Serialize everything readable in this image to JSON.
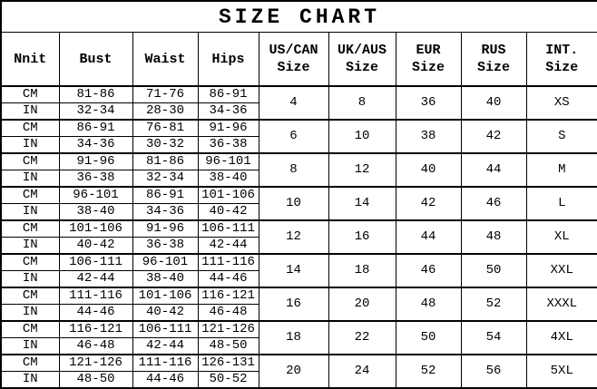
{
  "title": "SIZE CHART",
  "colors": {
    "background": "#ffffff",
    "border": "#000000",
    "text": "#000000"
  },
  "table": {
    "headers": [
      {
        "line1": "Nnit",
        "line2": ""
      },
      {
        "line1": "Bust",
        "line2": ""
      },
      {
        "line1": "Waist",
        "line2": ""
      },
      {
        "line1": "Hips",
        "line2": ""
      },
      {
        "line1": "US/CAN",
        "line2": "Size"
      },
      {
        "line1": "UK/AUS",
        "line2": "Size"
      },
      {
        "line1": "EUR",
        "line2": "Size"
      },
      {
        "line1": "RUS",
        "line2": "Size"
      },
      {
        "line1": "INT.",
        "line2": "Size"
      }
    ],
    "unit_labels": {
      "cm": "CM",
      "in": "IN"
    },
    "groups": [
      {
        "cm": {
          "bust": "81-86",
          "waist": "71-76",
          "hips": "86-91"
        },
        "in": {
          "bust": "32-34",
          "waist": "28-30",
          "hips": "34-36"
        },
        "us_can": "4",
        "uk_aus": "8",
        "eur": "36",
        "rus": "40",
        "int": "XS"
      },
      {
        "cm": {
          "bust": "86-91",
          "waist": "76-81",
          "hips": "91-96"
        },
        "in": {
          "bust": "34-36",
          "waist": "30-32",
          "hips": "36-38"
        },
        "us_can": "6",
        "uk_aus": "10",
        "eur": "38",
        "rus": "42",
        "int": "S"
      },
      {
        "cm": {
          "bust": "91-96",
          "waist": "81-86",
          "hips": "96-101"
        },
        "in": {
          "bust": "36-38",
          "waist": "32-34",
          "hips": "38-40"
        },
        "us_can": "8",
        "uk_aus": "12",
        "eur": "40",
        "rus": "44",
        "int": "M"
      },
      {
        "cm": {
          "bust": "96-101",
          "waist": "86-91",
          "hips": "101-106"
        },
        "in": {
          "bust": "38-40",
          "waist": "34-36",
          "hips": "40-42"
        },
        "us_can": "10",
        "uk_aus": "14",
        "eur": "42",
        "rus": "46",
        "int": "L"
      },
      {
        "cm": {
          "bust": "101-106",
          "waist": "91-96",
          "hips": "106-111"
        },
        "in": {
          "bust": "40-42",
          "waist": "36-38",
          "hips": "42-44"
        },
        "us_can": "12",
        "uk_aus": "16",
        "eur": "44",
        "rus": "48",
        "int": "XL"
      },
      {
        "cm": {
          "bust": "106-111",
          "waist": "96-101",
          "hips": "111-116"
        },
        "in": {
          "bust": "42-44",
          "waist": "38-40",
          "hips": "44-46"
        },
        "us_can": "14",
        "uk_aus": "18",
        "eur": "46",
        "rus": "50",
        "int": "XXL"
      },
      {
        "cm": {
          "bust": "111-116",
          "waist": "101-106",
          "hips": "116-121"
        },
        "in": {
          "bust": "44-46",
          "waist": "40-42",
          "hips": "46-48"
        },
        "us_can": "16",
        "uk_aus": "20",
        "eur": "48",
        "rus": "52",
        "int": "XXXL"
      },
      {
        "cm": {
          "bust": "116-121",
          "waist": "106-111",
          "hips": "121-126"
        },
        "in": {
          "bust": "46-48",
          "waist": "42-44",
          "hips": "48-50"
        },
        "us_can": "18",
        "uk_aus": "22",
        "eur": "50",
        "rus": "54",
        "int": "4XL"
      },
      {
        "cm": {
          "bust": "121-126",
          "waist": "111-116",
          "hips": "126-131"
        },
        "in": {
          "bust": "48-50",
          "waist": "44-46",
          "hips": "50-52"
        },
        "us_can": "20",
        "uk_aus": "24",
        "eur": "52",
        "rus": "56",
        "int": "5XL"
      }
    ]
  },
  "chart_data": {
    "type": "table",
    "title": "SIZE CHART",
    "columns": [
      "Nnit",
      "Bust",
      "Waist",
      "Hips",
      "US/CAN Size",
      "UK/AUS Size",
      "EUR Size",
      "RUS Size",
      "INT. Size"
    ],
    "rows": [
      [
        "CM",
        "81-86",
        "71-76",
        "86-91",
        "4",
        "8",
        "36",
        "40",
        "XS"
      ],
      [
        "IN",
        "32-34",
        "28-30",
        "34-36",
        "4",
        "8",
        "36",
        "40",
        "XS"
      ],
      [
        "CM",
        "86-91",
        "76-81",
        "91-96",
        "6",
        "10",
        "38",
        "42",
        "S"
      ],
      [
        "IN",
        "34-36",
        "30-32",
        "36-38",
        "6",
        "10",
        "38",
        "42",
        "S"
      ],
      [
        "CM",
        "91-96",
        "81-86",
        "96-101",
        "8",
        "12",
        "40",
        "44",
        "M"
      ],
      [
        "IN",
        "36-38",
        "32-34",
        "38-40",
        "8",
        "12",
        "40",
        "44",
        "M"
      ],
      [
        "CM",
        "96-101",
        "86-91",
        "101-106",
        "10",
        "14",
        "42",
        "46",
        "L"
      ],
      [
        "IN",
        "38-40",
        "34-36",
        "40-42",
        "10",
        "14",
        "42",
        "46",
        "L"
      ],
      [
        "CM",
        "101-106",
        "91-96",
        "106-111",
        "12",
        "16",
        "44",
        "48",
        "XL"
      ],
      [
        "IN",
        "40-42",
        "36-38",
        "42-44",
        "12",
        "16",
        "44",
        "48",
        "XL"
      ],
      [
        "CM",
        "106-111",
        "96-101",
        "111-116",
        "14",
        "18",
        "46",
        "50",
        "XXL"
      ],
      [
        "IN",
        "42-44",
        "38-40",
        "44-46",
        "14",
        "18",
        "46",
        "50",
        "XXL"
      ],
      [
        "CM",
        "111-116",
        "101-106",
        "116-121",
        "16",
        "20",
        "48",
        "52",
        "XXXL"
      ],
      [
        "IN",
        "44-46",
        "40-42",
        "46-48",
        "16",
        "20",
        "48",
        "52",
        "XXXL"
      ],
      [
        "CM",
        "116-121",
        "106-111",
        "121-126",
        "18",
        "22",
        "50",
        "54",
        "4XL"
      ],
      [
        "IN",
        "46-48",
        "42-44",
        "48-50",
        "18",
        "22",
        "50",
        "54",
        "4XL"
      ],
      [
        "CM",
        "121-126",
        "111-116",
        "126-131",
        "20",
        "24",
        "52",
        "56",
        "5XL"
      ],
      [
        "IN",
        "48-50",
        "44-46",
        "50-52",
        "20",
        "24",
        "52",
        "56",
        "5XL"
      ]
    ]
  }
}
